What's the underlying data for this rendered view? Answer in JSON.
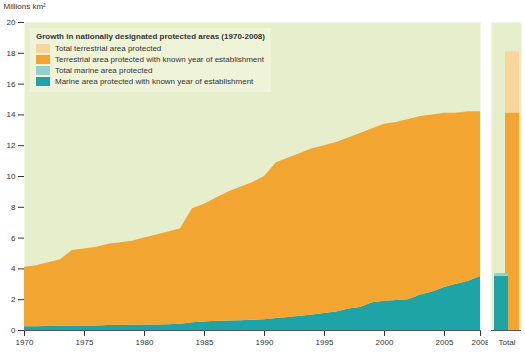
{
  "chart_data": [
    {
      "type": "area",
      "title": "Growth in nationally designated protected areas (1970-2008)",
      "y_label": "Millions km²",
      "stacked": true,
      "x": [
        1970,
        1971,
        1972,
        1973,
        1974,
        1975,
        1976,
        1977,
        1978,
        1979,
        1980,
        1981,
        1982,
        1983,
        1984,
        1985,
        1986,
        1987,
        1988,
        1989,
        1990,
        1991,
        1992,
        1993,
        1994,
        1995,
        1996,
        1997,
        1998,
        1999,
        2000,
        2001,
        2002,
        2003,
        2004,
        2005,
        2006,
        2007,
        2008
      ],
      "xlim": [
        1970,
        2008
      ],
      "xticks": [
        1970,
        1975,
        1980,
        1985,
        1990,
        1995,
        2000,
        2005,
        2008
      ],
      "ylim": [
        0,
        20
      ],
      "yticks": [
        0,
        2,
        4,
        6,
        8,
        10,
        12,
        14,
        16,
        18,
        20
      ],
      "series": [
        {
          "name": "Marine area protected with known year of establishment",
          "color": "#1ea3a6",
          "values": [
            0.25,
            0.25,
            0.26,
            0.27,
            0.28,
            0.3,
            0.3,
            0.32,
            0.33,
            0.34,
            0.35,
            0.36,
            0.38,
            0.4,
            0.5,
            0.55,
            0.6,
            0.62,
            0.64,
            0.66,
            0.7,
            0.78,
            0.85,
            0.92,
            1.0,
            1.1,
            1.2,
            1.4,
            1.5,
            1.8,
            1.9,
            1.95,
            2.0,
            2.3,
            2.5,
            2.8,
            3.0,
            3.2,
            3.5
          ]
        },
        {
          "name": "Terrestrial area protected with known  year of establishment",
          "color": "#f2a531",
          "values": [
            3.85,
            3.95,
            4.14,
            4.33,
            4.92,
            5.0,
            5.1,
            5.28,
            5.37,
            5.46,
            5.65,
            5.84,
            6.02,
            6.2,
            7.4,
            7.65,
            8.0,
            8.38,
            8.66,
            8.94,
            9.3,
            10.12,
            10.35,
            10.58,
            10.8,
            10.9,
            11.0,
            11.1,
            11.3,
            11.3,
            11.5,
            11.55,
            11.7,
            11.6,
            11.5,
            11.3,
            11.1,
            11.0,
            10.7
          ]
        }
      ]
    },
    {
      "type": "bar",
      "categories": [
        "Total"
      ],
      "ylim": [
        0,
        20
      ],
      "tick_labels": "x",
      "legend": "top-left",
      "series": [
        {
          "name": "Total terrestrial area protected",
          "color": "#f9d59c",
          "values": [
            18.1
          ]
        },
        {
          "name": "Terrestrial area protected with known  year of establishment",
          "color": "#f2a531",
          "values": [
            14.1
          ]
        },
        {
          "name": "Total marine area protected",
          "color": "#8ed3cc",
          "values": [
            3.7
          ]
        },
        {
          "name": "Marine area protected with known year of establishment",
          "color": "#1ea3a6",
          "values": [
            3.5
          ]
        }
      ]
    }
  ]
}
